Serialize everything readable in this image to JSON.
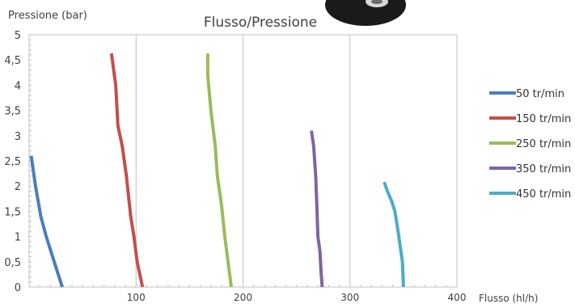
{
  "chart_data": {
    "type": "line",
    "title": "Flusso/Pressione",
    "xlabel": "Flusso (hl/h)",
    "ylabel": "Pressione (bar)",
    "xlim": [
      0,
      400
    ],
    "ylim": [
      0,
      5
    ],
    "x_ticks": [
      "100",
      "200",
      "300",
      "400"
    ],
    "y_ticks": [
      "0",
      "0,5",
      "1",
      "1,5",
      "2",
      "2,5",
      "3",
      "3,5",
      "4",
      "4,5",
      "5"
    ],
    "grid": true,
    "legend_position": "right",
    "series": [
      {
        "name": "50 tr/min",
        "color": "#4a7ebb",
        "points": [
          [
            2,
            2.6
          ],
          [
            6,
            2.0
          ],
          [
            11,
            1.4
          ],
          [
            16,
            1.0
          ],
          [
            22,
            0.6
          ],
          [
            28,
            0.2
          ],
          [
            31,
            0
          ]
        ]
      },
      {
        "name": "150 tr/min",
        "color": "#c0504d",
        "points": [
          [
            77,
            4.63
          ],
          [
            81,
            4.0
          ],
          [
            83,
            3.2
          ],
          [
            87,
            2.8
          ],
          [
            91,
            2.2
          ],
          [
            95,
            1.4
          ],
          [
            98,
            1.0
          ],
          [
            101,
            0.5
          ],
          [
            106,
            0
          ]
        ]
      },
      {
        "name": "250 tr/min",
        "color": "#9bbb59",
        "points": [
          [
            167,
            4.63
          ],
          [
            167,
            4.2
          ],
          [
            170,
            3.5
          ],
          [
            174,
            2.8
          ],
          [
            176,
            2.2
          ],
          [
            180,
            1.6
          ],
          [
            183,
            1.0
          ],
          [
            186,
            0.5
          ],
          [
            189,
            0
          ]
        ]
      },
      {
        "name": "350 tr/min",
        "color": "#8064a2",
        "points": [
          [
            264,
            3.1
          ],
          [
            266,
            2.8
          ],
          [
            268,
            2.2
          ],
          [
            269,
            1.6
          ],
          [
            270,
            1.0
          ],
          [
            272,
            0.7
          ],
          [
            273,
            0.3
          ],
          [
            274,
            0
          ]
        ]
      },
      {
        "name": "450 tr/min",
        "color": "#4bacc6",
        "points": [
          [
            332,
            2.08
          ],
          [
            335,
            1.9
          ],
          [
            339,
            1.7
          ],
          [
            342,
            1.5
          ],
          [
            345,
            1.1
          ],
          [
            347,
            0.8
          ],
          [
            349,
            0.5
          ],
          [
            350,
            0
          ]
        ]
      }
    ]
  }
}
